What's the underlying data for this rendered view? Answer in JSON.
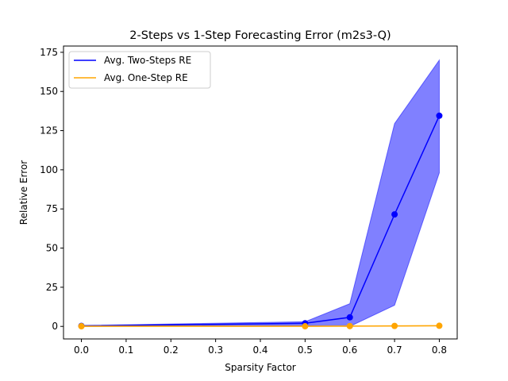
{
  "chart_data": {
    "type": "line",
    "title": "2-Steps vs 1-Step Forecasting Error (m2s3-Q)",
    "xlabel": "Sparsity Factor",
    "ylabel": "Relative Error",
    "x": [
      0.0,
      0.5,
      0.6,
      0.7,
      0.8
    ],
    "xlim": [
      -0.04,
      0.84
    ],
    "ylim": [
      -8,
      179
    ],
    "xticks": [
      0.0,
      0.1,
      0.2,
      0.3,
      0.4,
      0.5,
      0.6,
      0.7,
      0.8
    ],
    "xtick_labels": [
      "0.0",
      "0.1",
      "0.2",
      "0.3",
      "0.4",
      "0.5",
      "0.6",
      "0.7",
      "0.8"
    ],
    "yticks": [
      0,
      25,
      50,
      75,
      100,
      125,
      150,
      175
    ],
    "ytick_labels": [
      "0",
      "25",
      "50",
      "75",
      "100",
      "125",
      "150",
      "175"
    ],
    "grid": false,
    "legend_position": "top-left",
    "series": [
      {
        "name": "Avg. Two-Steps RE",
        "color": "#0000ff",
        "values": [
          0.3,
          2.0,
          5.8,
          71.5,
          134.5
        ],
        "band_lower": [
          0.0,
          0.5,
          0.0,
          13.5,
          98.0
        ],
        "band_upper": [
          0.6,
          3.0,
          14.5,
          129.5,
          170.0
        ],
        "band_color": "#8080ff"
      },
      {
        "name": "Avg. One-Step RE",
        "color": "#ffa500",
        "values": [
          0.1,
          0.1,
          0.2,
          0.3,
          0.4
        ],
        "band_lower": [
          0.0,
          0.0,
          0.1,
          0.2,
          0.3
        ],
        "band_upper": [
          0.2,
          0.2,
          0.3,
          0.4,
          0.5
        ],
        "band_color": "#ffd280"
      }
    ]
  }
}
